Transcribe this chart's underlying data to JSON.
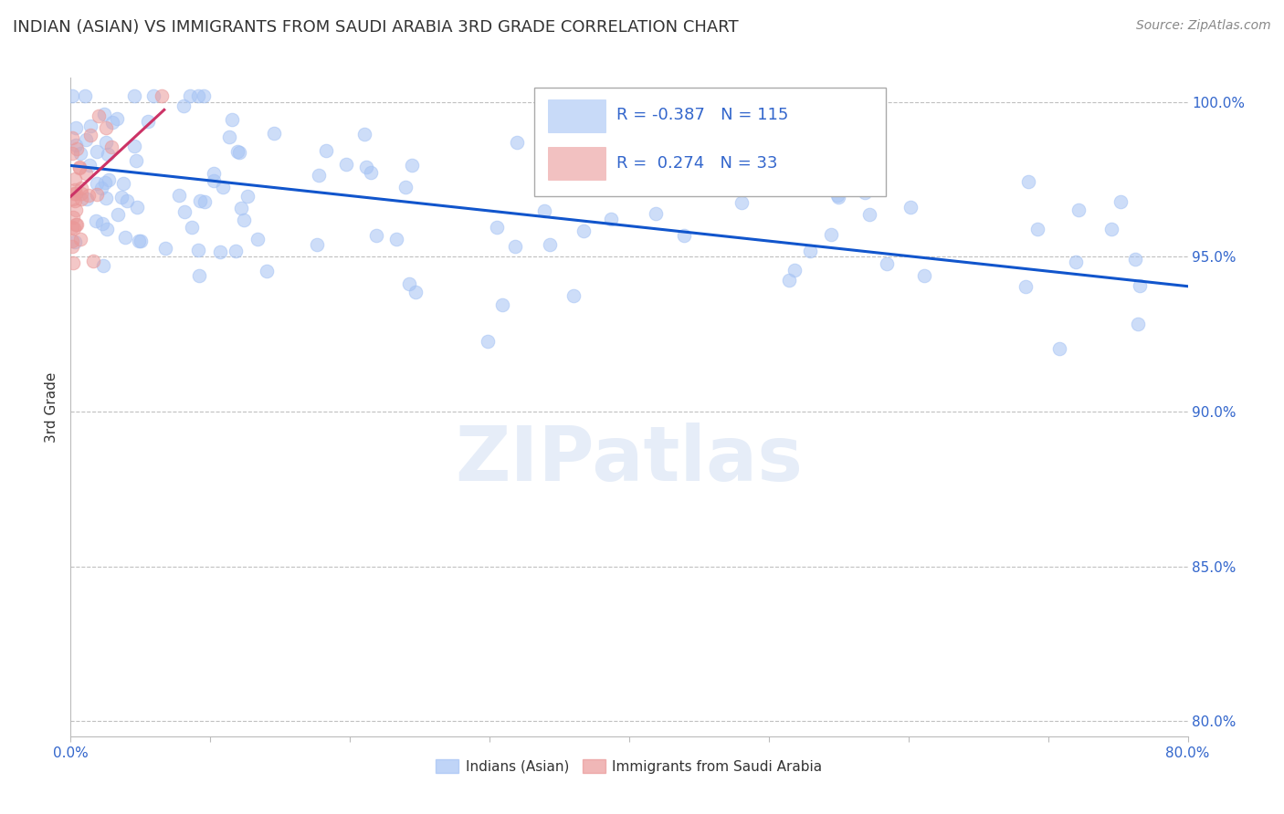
{
  "title": "INDIAN (ASIAN) VS IMMIGRANTS FROM SAUDI ARABIA 3RD GRADE CORRELATION CHART",
  "source": "Source: ZipAtlas.com",
  "ylabel": "3rd Grade",
  "xlim": [
    0.0,
    0.8
  ],
  "ylim": [
    0.795,
    1.008
  ],
  "xticks": [
    0.0,
    0.1,
    0.2,
    0.3,
    0.4,
    0.5,
    0.6,
    0.7,
    0.8
  ],
  "xticklabels": [
    "0.0%",
    "",
    "",
    "",
    "",
    "",
    "",
    "",
    "80.0%"
  ],
  "yticks": [
    0.8,
    0.85,
    0.9,
    0.95,
    1.0
  ],
  "yticklabels": [
    "80.0%",
    "85.0%",
    "90.0%",
    "95.0%",
    "100.0%"
  ],
  "blue_color": "#a4c2f4",
  "pink_color": "#ea9999",
  "blue_line_color": "#1155cc",
  "pink_line_color": "#cc3366",
  "legend_R_blue": "-0.387",
  "legend_N_blue": "115",
  "legend_R_pink": "0.274",
  "legend_N_pink": "33",
  "watermark": "ZIPatlas",
  "background_color": "#ffffff",
  "grid_color": "#c0c0c0",
  "title_color": "#333333",
  "axis_label_color": "#333333",
  "tick_color": "#3366cc",
  "blue_line_x0": 0.0,
  "blue_line_x1": 0.8,
  "blue_line_y0": 0.9795,
  "blue_line_y1": 0.9405,
  "pink_line_x0": 0.0,
  "pink_line_x1": 0.067,
  "pink_line_y0": 0.9695,
  "pink_line_y1": 0.9975,
  "marker_size": 110,
  "marker_alpha": 0.55,
  "title_fontsize": 13,
  "source_fontsize": 10,
  "legend_fontsize": 13,
  "axis_label_fontsize": 11,
  "tick_label_fontsize": 11
}
